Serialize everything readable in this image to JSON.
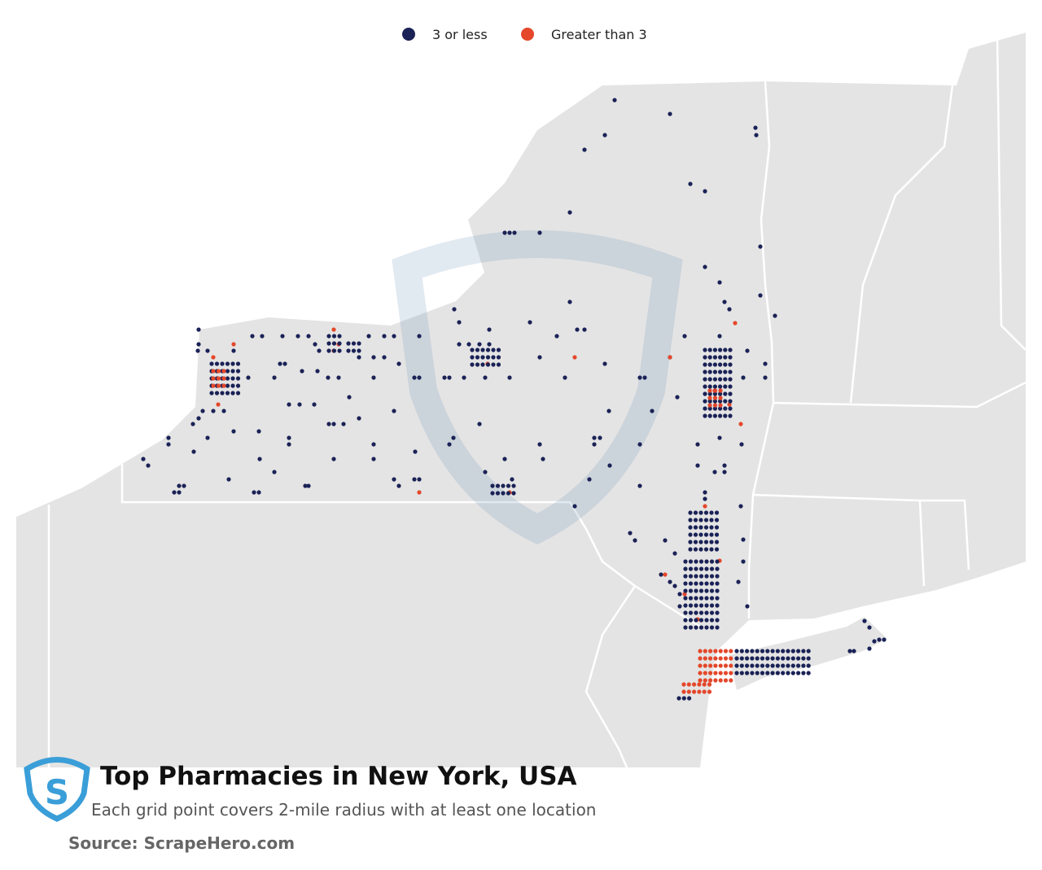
{
  "legend": {
    "items": [
      {
        "label": "3 or less",
        "color": "#1a2256"
      },
      {
        "label": "Greater than 3",
        "color": "#e4472a"
      }
    ]
  },
  "title": "Top Pharmacies in New York, USA",
  "subtitle": "Each grid point covers 2-mile radius with at least one location",
  "source": "Source: ScrapeHero.com"
}
